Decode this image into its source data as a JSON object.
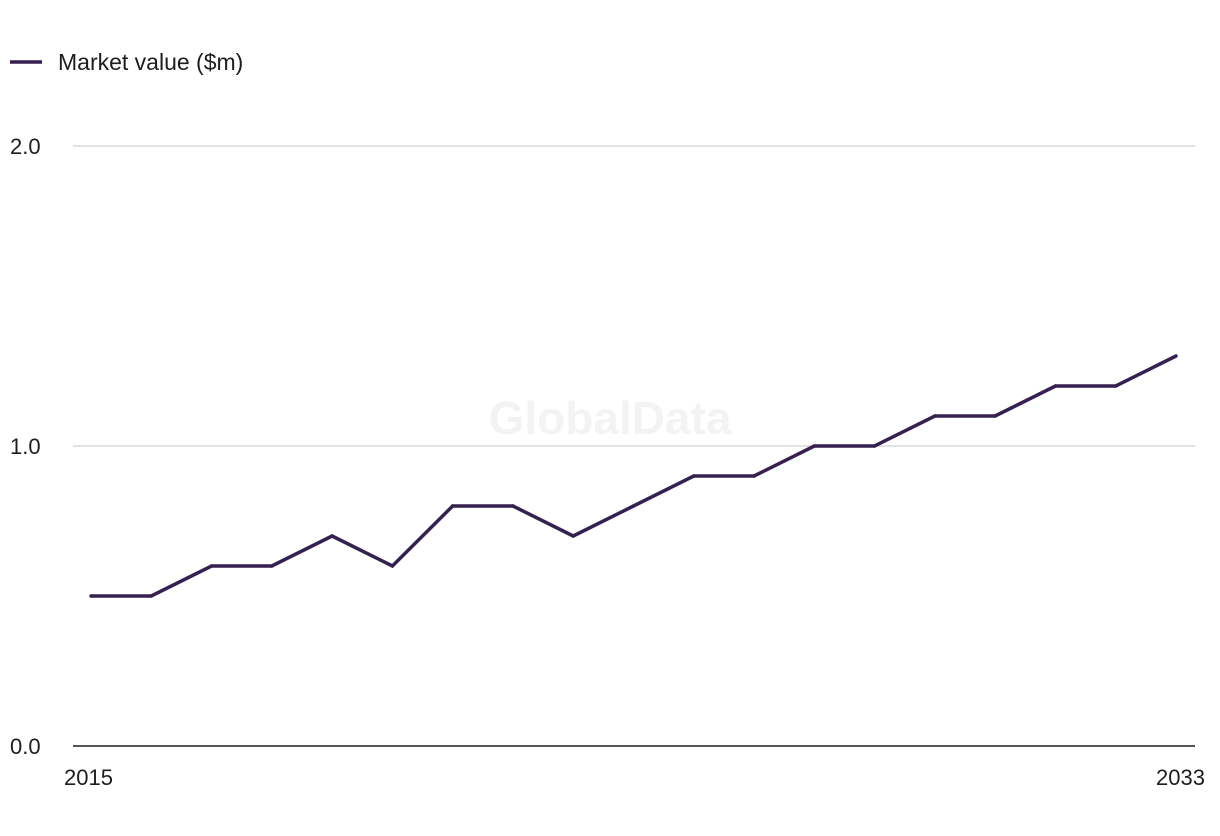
{
  "chart_data": {
    "type": "line",
    "x": [
      2015,
      2016,
      2017,
      2018,
      2019,
      2020,
      2021,
      2022,
      2023,
      2024,
      2025,
      2026,
      2027,
      2028,
      2029,
      2030,
      2031,
      2032,
      2033
    ],
    "series": [
      {
        "name": "Market value ($m)",
        "values": [
          0.5,
          0.5,
          0.6,
          0.6,
          0.7,
          0.6,
          0.8,
          0.8,
          0.7,
          0.8,
          0.9,
          0.9,
          1.0,
          1.0,
          1.1,
          1.1,
          1.2,
          1.2,
          1.3
        ],
        "color": "#35214f"
      }
    ],
    "x_tick_labels": [
      "2015",
      "2033"
    ],
    "y_tick_labels": [
      "0.0",
      "1.0",
      "2.0"
    ],
    "y_ticks": [
      0,
      1,
      2
    ],
    "xlim": [
      2015,
      2033
    ],
    "ylim": [
      0,
      2
    ],
    "grid": "horizontal",
    "legend_position": "top-left",
    "watermark": "GlobalData",
    "colors": {
      "gridline": "#d9d9d9",
      "axis": "#1d1d1d",
      "series": "#35214f"
    }
  }
}
